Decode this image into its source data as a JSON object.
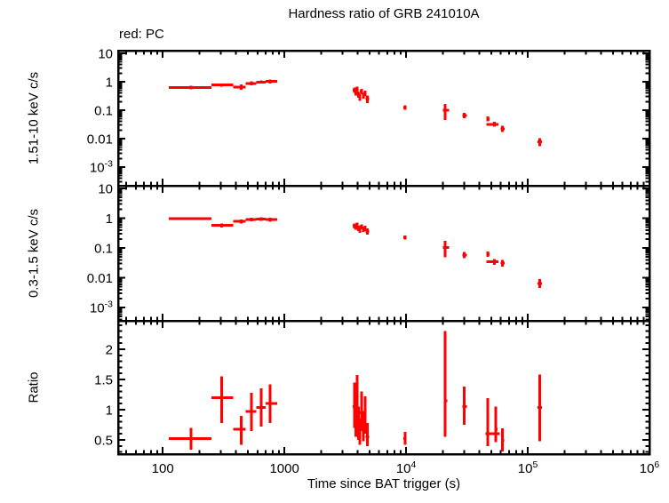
{
  "chart_data": {
    "type": "scatter",
    "title": "Hardness ratio of GRB 241010A",
    "mode_label": "red: PC",
    "xlabel": "Time since BAT trigger (s)",
    "x_scale": "log",
    "x_range": [
      43,
      1000000
    ],
    "x_ticks": [
      {
        "v": 100,
        "label": "100"
      },
      {
        "v": 1000,
        "label": "1000"
      },
      {
        "v": 10000,
        "label": "10^4"
      },
      {
        "v": 100000,
        "label": "10^5"
      },
      {
        "v": 1000000,
        "label": "10^6"
      }
    ],
    "data_color": "#ff0000",
    "axis_color": "#000000",
    "background_color": "#ffffff",
    "legend_position": "top-left-outside",
    "grid": false,
    "point_format": [
      "t",
      "t_lo",
      "t_hi",
      "value",
      "value_lo",
      "value_hi"
    ],
    "panels": [
      {
        "name": "hard",
        "ylabel": "1.51-10 keV c/s",
        "y_scale": "log",
        "y_range": [
          0.00022,
          12.4
        ],
        "y_ticks": [
          {
            "v": 10,
            "label": "10"
          },
          {
            "v": 1,
            "label": "1"
          },
          {
            "v": 0.1,
            "label": "0.1"
          },
          {
            "v": 0.01,
            "label": "0.01"
          },
          {
            "v": 0.001,
            "label": "10^-3"
          }
        ],
        "points": [
          [
            170,
            112,
            252,
            0.63,
            0.55,
            0.72
          ],
          [
            305,
            252,
            380,
            0.78,
            0.68,
            0.88
          ],
          [
            440,
            380,
            482,
            0.66,
            0.52,
            0.8
          ],
          [
            535,
            482,
            585,
            0.88,
            0.75,
            1.02
          ],
          [
            645,
            585,
            700,
            0.97,
            0.85,
            1.12
          ],
          [
            760,
            700,
            870,
            1.02,
            0.88,
            1.18
          ],
          [
            3750,
            3650,
            3860,
            0.5,
            0.4,
            0.62
          ],
          [
            3850,
            3750,
            3960,
            0.42,
            0.33,
            0.52
          ],
          [
            3950,
            3850,
            4060,
            0.55,
            0.44,
            0.68
          ],
          [
            4050,
            3950,
            4160,
            0.35,
            0.27,
            0.44
          ],
          [
            4150,
            4050,
            4260,
            0.28,
            0.21,
            0.36
          ],
          [
            4300,
            4180,
            4420,
            0.45,
            0.36,
            0.56
          ],
          [
            4450,
            4330,
            4580,
            0.32,
            0.25,
            0.41
          ],
          [
            4600,
            4470,
            4740,
            0.38,
            0.3,
            0.48
          ],
          [
            4800,
            4650,
            4950,
            0.25,
            0.18,
            0.33
          ],
          [
            9800,
            9500,
            10100,
            0.125,
            0.105,
            0.148
          ],
          [
            21000,
            20000,
            22500,
            0.1,
            0.045,
            0.165
          ],
          [
            30000,
            29000,
            31500,
            0.065,
            0.052,
            0.08
          ],
          [
            47000,
            45800,
            48500,
            0.049,
            0.04,
            0.06
          ],
          [
            53000,
            45800,
            57500,
            0.032,
            0.026,
            0.039
          ],
          [
            62000,
            60000,
            64500,
            0.022,
            0.017,
            0.028
          ],
          [
            125000,
            120000,
            131000,
            0.0078,
            0.0055,
            0.0105
          ]
        ]
      },
      {
        "name": "soft",
        "ylabel": "0.3-1.5 keV c/s",
        "y_scale": "log",
        "y_range": [
          0.000356,
          12.3
        ],
        "y_ticks": [
          {
            "v": 10,
            "label": "10"
          },
          {
            "v": 1,
            "label": "1"
          },
          {
            "v": 0.1,
            "label": "0.1"
          },
          {
            "v": 0.01,
            "label": "0.01"
          },
          {
            "v": 0.001,
            "label": "10^-3"
          }
        ],
        "points": [
          [
            170,
            112,
            252,
            0.95,
            0.86,
            1.05
          ],
          [
            305,
            252,
            380,
            0.57,
            0.48,
            0.67
          ],
          [
            440,
            380,
            482,
            0.78,
            0.66,
            0.91
          ],
          [
            535,
            482,
            585,
            0.9,
            0.78,
            1.03
          ],
          [
            645,
            585,
            700,
            0.93,
            0.81,
            1.06
          ],
          [
            760,
            700,
            870,
            0.9,
            0.77,
            1.04
          ],
          [
            3750,
            3650,
            3860,
            0.55,
            0.46,
            0.66
          ],
          [
            3850,
            3750,
            3960,
            0.5,
            0.41,
            0.6
          ],
          [
            3950,
            3850,
            4060,
            0.6,
            0.5,
            0.72
          ],
          [
            4050,
            3950,
            4160,
            0.45,
            0.37,
            0.55
          ],
          [
            4150,
            4050,
            4260,
            0.4,
            0.32,
            0.49
          ],
          [
            4300,
            4180,
            4420,
            0.52,
            0.43,
            0.62
          ],
          [
            4450,
            4330,
            4580,
            0.43,
            0.35,
            0.52
          ],
          [
            4600,
            4470,
            4740,
            0.46,
            0.37,
            0.56
          ],
          [
            4800,
            4650,
            4950,
            0.36,
            0.28,
            0.45
          ],
          [
            9800,
            9500,
            10100,
            0.225,
            0.195,
            0.26
          ],
          [
            21000,
            20000,
            22500,
            0.105,
            0.048,
            0.175
          ],
          [
            30000,
            29000,
            31500,
            0.058,
            0.045,
            0.073
          ],
          [
            47000,
            45800,
            48500,
            0.062,
            0.05,
            0.076
          ],
          [
            53000,
            45800,
            57500,
            0.034,
            0.027,
            0.042
          ],
          [
            62000,
            60000,
            64500,
            0.031,
            0.024,
            0.039
          ],
          [
            125000,
            120000,
            131000,
            0.0065,
            0.0045,
            0.009
          ]
        ]
      },
      {
        "name": "ratio",
        "ylabel": "Ratio",
        "y_scale": "linear",
        "y_range": [
          0.265,
          2.47
        ],
        "y_ticks": [
          {
            "v": 0.5,
            "label": "0.5"
          },
          {
            "v": 1,
            "label": "1"
          },
          {
            "v": 1.5,
            "label": "1.5"
          },
          {
            "v": 2,
            "label": "2"
          }
        ],
        "points": [
          [
            170,
            112,
            252,
            0.52,
            0.34,
            0.7
          ],
          [
            305,
            252,
            380,
            1.2,
            0.78,
            1.55
          ],
          [
            440,
            380,
            482,
            0.68,
            0.42,
            0.9
          ],
          [
            535,
            482,
            585,
            0.97,
            0.65,
            1.28
          ],
          [
            645,
            585,
            700,
            1.04,
            0.72,
            1.35
          ],
          [
            760,
            700,
            870,
            1.1,
            0.78,
            1.42
          ],
          [
            3750,
            3650,
            3860,
            1.05,
            0.7,
            1.45
          ],
          [
            3850,
            3750,
            3960,
            0.85,
            0.55,
            1.2
          ],
          [
            3950,
            3850,
            4060,
            1.15,
            0.8,
            1.57
          ],
          [
            4050,
            3950,
            4160,
            0.75,
            0.5,
            1.05
          ],
          [
            4150,
            4050,
            4260,
            0.6,
            0.42,
            0.85
          ],
          [
            4300,
            4180,
            4420,
            0.95,
            0.65,
            1.3
          ],
          [
            4450,
            4330,
            4580,
            0.7,
            0.48,
            0.98
          ],
          [
            4600,
            4470,
            4740,
            0.88,
            0.6,
            1.22
          ],
          [
            4800,
            4650,
            4950,
            0.55,
            0.4,
            0.78
          ],
          [
            9800,
            9500,
            10100,
            0.52,
            0.42,
            0.63
          ],
          [
            21000,
            20400,
            21800,
            1.15,
            0.55,
            2.3
          ],
          [
            30000,
            29000,
            31500,
            1.05,
            0.75,
            1.38
          ],
          [
            47000,
            45000,
            58800,
            0.6,
            0.4,
            1.19
          ],
          [
            54600,
            53000,
            56500,
            0.68,
            0.46,
            1.05
          ],
          [
            62000,
            60300,
            63800,
            0.49,
            0.31,
            0.69
          ],
          [
            125000,
            120000,
            131000,
            1.04,
            0.48,
            1.58
          ]
        ]
      }
    ]
  }
}
